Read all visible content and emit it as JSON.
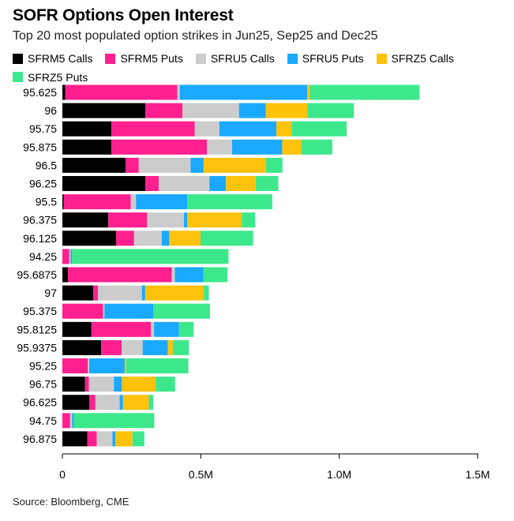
{
  "header": {
    "title": "SOFR Options Open Interest",
    "subtitle": "Top 20 most populated option strikes in Jun25, Sep25 and Dec25"
  },
  "source": "Source: Bloomberg, CME",
  "chart_data": {
    "type": "bar",
    "orientation": "horizontal",
    "stacked": true,
    "title": "SOFR Options Open Interest",
    "subtitle": "Top 20 most populated option strikes in Jun25, Sep25 and Dec25",
    "xlabel": "",
    "ylabel": "",
    "xlim": [
      0,
      1500000
    ],
    "x_ticks": [
      {
        "value": 0,
        "label": "0"
      },
      {
        "value": 500000,
        "label": "0.5M"
      },
      {
        "value": 1000000,
        "label": "1.0M"
      },
      {
        "value": 1500000,
        "label": "1.5M"
      }
    ],
    "grid": false,
    "legend_position": "top",
    "categories": [
      "95.625",
      "96",
      "95.75",
      "95.875",
      "96.5",
      "96.25",
      "95.5",
      "96.375",
      "96.125",
      "94.25",
      "95.6875",
      "97",
      "95.375",
      "95.8125",
      "95.9375",
      "95.25",
      "96.75",
      "96.625",
      "94.75",
      "96.875"
    ],
    "series": [
      {
        "name": "SFRM5 Calls",
        "color": "#000000",
        "values": [
          10000,
          300000,
          177000,
          177000,
          228000,
          300000,
          5000,
          166000,
          194000,
          0,
          20000,
          112000,
          0,
          105000,
          140000,
          0,
          82000,
          97000,
          0,
          90000
        ]
      },
      {
        "name": "SFRM5 Puts",
        "color": "#ff1f8f",
        "values": [
          405000,
          134000,
          301000,
          345000,
          48000,
          48000,
          242000,
          140000,
          65000,
          25000,
          375000,
          17000,
          147000,
          215000,
          74000,
          92000,
          14000,
          22000,
          28000,
          34000
        ]
      },
      {
        "name": "SFRU5 Calls",
        "color": "#cccccc",
        "values": [
          9000,
          204000,
          89000,
          91000,
          187000,
          183000,
          19000,
          133000,
          100000,
          5000,
          11000,
          158000,
          5000,
          11000,
          76000,
          5000,
          90000,
          88000,
          7000,
          57000
        ]
      },
      {
        "name": "SFRU5 Puts",
        "color": "#1aa9ff",
        "values": [
          460000,
          97000,
          206000,
          181000,
          47000,
          60000,
          185000,
          12000,
          27000,
          5000,
          103000,
          12000,
          176000,
          90000,
          91000,
          128000,
          29000,
          12000,
          7000,
          10000
        ]
      },
      {
        "name": "SFRZ5 Calls",
        "color": "#ffc20a",
        "values": [
          10000,
          150000,
          55000,
          69000,
          225000,
          107000,
          0,
          197000,
          113000,
          0,
          0,
          212000,
          0,
          0,
          18000,
          5000,
          122000,
          93000,
          0,
          62000
        ]
      },
      {
        "name": "SFRZ5 Puts",
        "color": "#3de88c",
        "values": [
          396000,
          168000,
          199000,
          112000,
          60000,
          82000,
          307000,
          48000,
          190000,
          565000,
          87000,
          18000,
          205000,
          53000,
          58000,
          225000,
          70000,
          16000,
          290000,
          43000
        ]
      }
    ]
  }
}
